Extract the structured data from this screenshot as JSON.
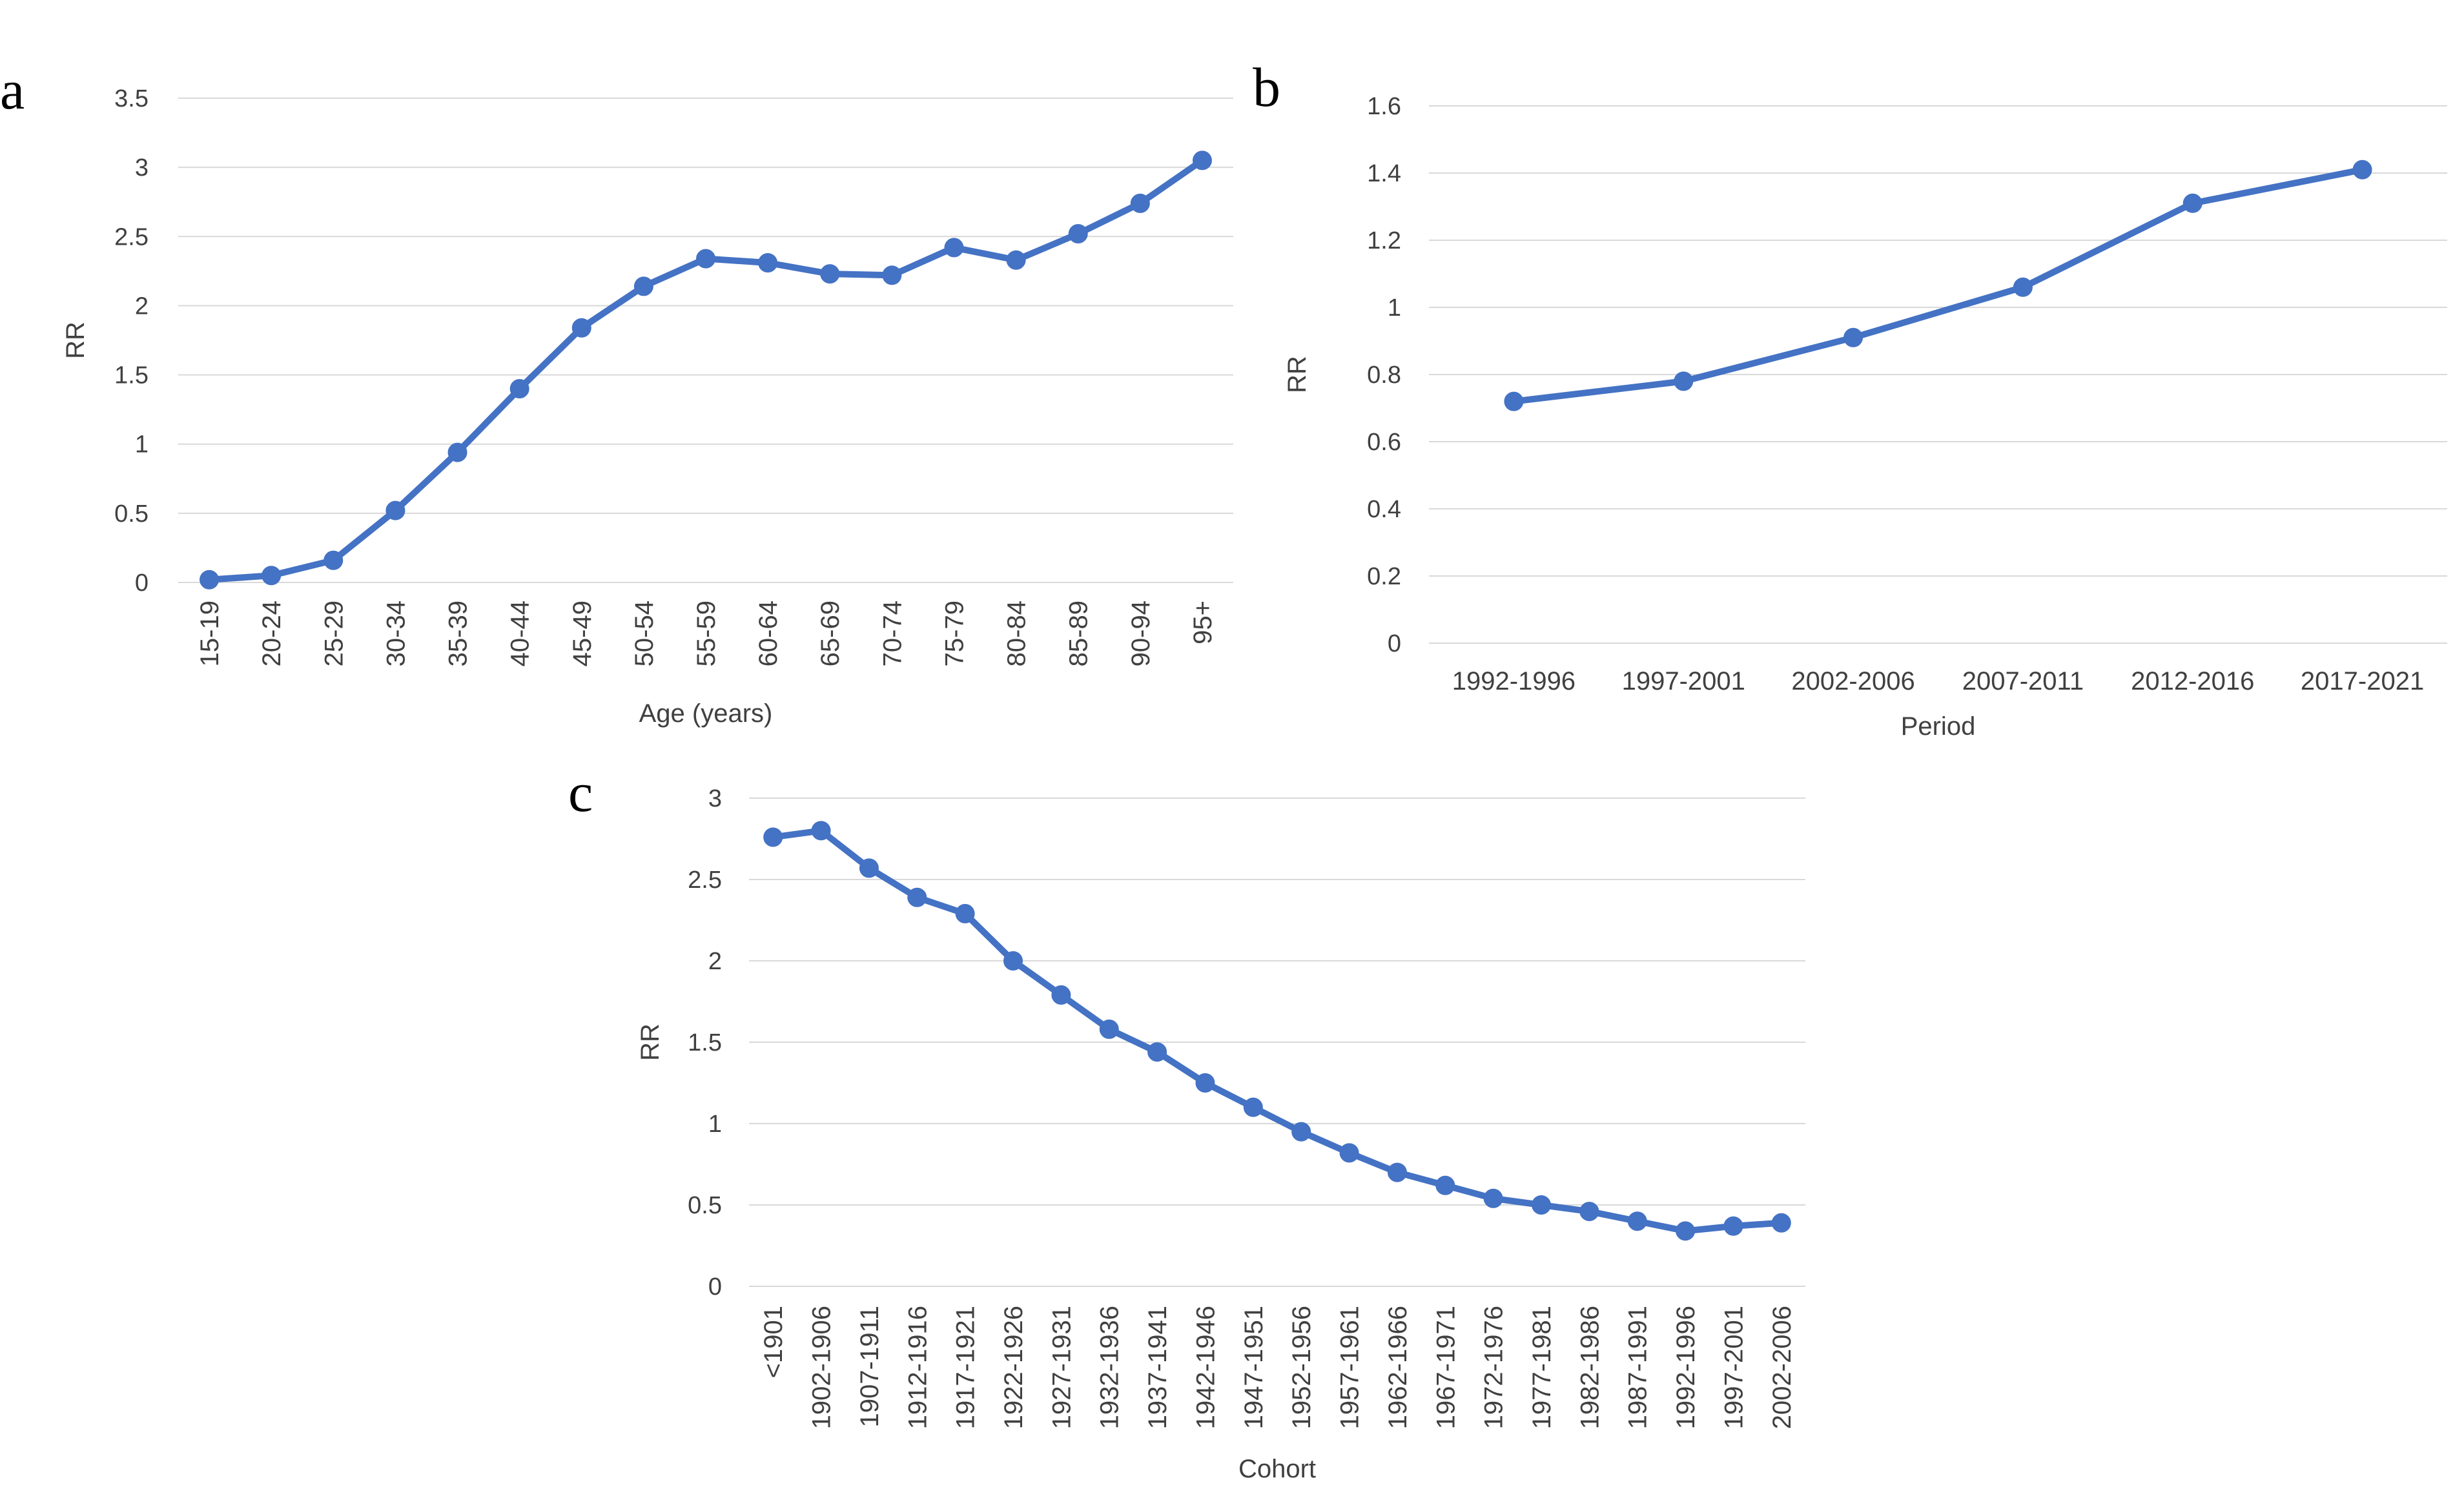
{
  "series_color": "#4472c4",
  "grid_color": "#d9d9d9",
  "chart_data": [
    {
      "id": "a",
      "panel_label": "a",
      "type": "line",
      "title": "",
      "xlabel": "Age (years)",
      "ylabel": "RR",
      "ylim": [
        0,
        3.5
      ],
      "yticks": [
        "0",
        "0.5",
        "1",
        "1.5",
        "2",
        "2.5",
        "3",
        "3.5"
      ],
      "x_label_rotation": "vertical",
      "grid": true,
      "legend": "none",
      "categories": [
        "15-19",
        "20-24",
        "25-29",
        "30-34",
        "35-39",
        "40-44",
        "45-49",
        "50-54",
        "55-59",
        "60-64",
        "65-69",
        "70-74",
        "75-79",
        "80-84",
        "85-89",
        "90-94",
        "95+"
      ],
      "series": [
        {
          "values": [
            0.02,
            0.05,
            0.16,
            0.52,
            0.94,
            1.4,
            1.84,
            2.14,
            2.34,
            2.31,
            2.23,
            2.22,
            2.42,
            2.33,
            2.52,
            2.74,
            3.05
          ]
        }
      ]
    },
    {
      "id": "b",
      "panel_label": "b",
      "type": "line",
      "title": "",
      "xlabel": "Period",
      "ylabel": "RR",
      "ylim": [
        0,
        1.6
      ],
      "yticks": [
        "0",
        "0.2",
        "0.4",
        "0.6",
        "0.8",
        "1",
        "1.2",
        "1.4",
        "1.6"
      ],
      "x_label_rotation": "horizontal",
      "grid": true,
      "legend": "none",
      "categories": [
        "1992-1996",
        "1997-2001",
        "2002-2006",
        "2007-2011",
        "2012-2016",
        "2017-2021"
      ],
      "series": [
        {
          "values": [
            0.72,
            0.78,
            0.91,
            1.06,
            1.31,
            1.41
          ]
        }
      ]
    },
    {
      "id": "c",
      "panel_label": "c",
      "type": "line",
      "title": "",
      "xlabel": "Cohort",
      "ylabel": "RR",
      "ylim": [
        0,
        3
      ],
      "yticks": [
        "0",
        "0.5",
        "1",
        "1.5",
        "2",
        "2.5",
        "3"
      ],
      "x_label_rotation": "vertical",
      "grid": true,
      "legend": "none",
      "categories": [
        "<1901",
        "1902-1906",
        "1907-1911",
        "1912-1916",
        "1917-1921",
        "1922-1926",
        "1927-1931",
        "1932-1936",
        "1937-1941",
        "1942-1946",
        "1947-1951",
        "1952-1956",
        "1957-1961",
        "1962-1966",
        "1967-1971",
        "1972-1976",
        "1977-1981",
        "1982-1986",
        "1987-1991",
        "1992-1996",
        "1997-2001",
        "2002-2006"
      ],
      "series": [
        {
          "values": [
            2.76,
            2.8,
            2.57,
            2.39,
            2.29,
            2.0,
            1.79,
            1.58,
            1.44,
            1.25,
            1.1,
            0.95,
            0.82,
            0.7,
            0.62,
            0.54,
            0.5,
            0.46,
            0.4,
            0.34,
            0.37,
            0.39
          ]
        }
      ]
    }
  ]
}
